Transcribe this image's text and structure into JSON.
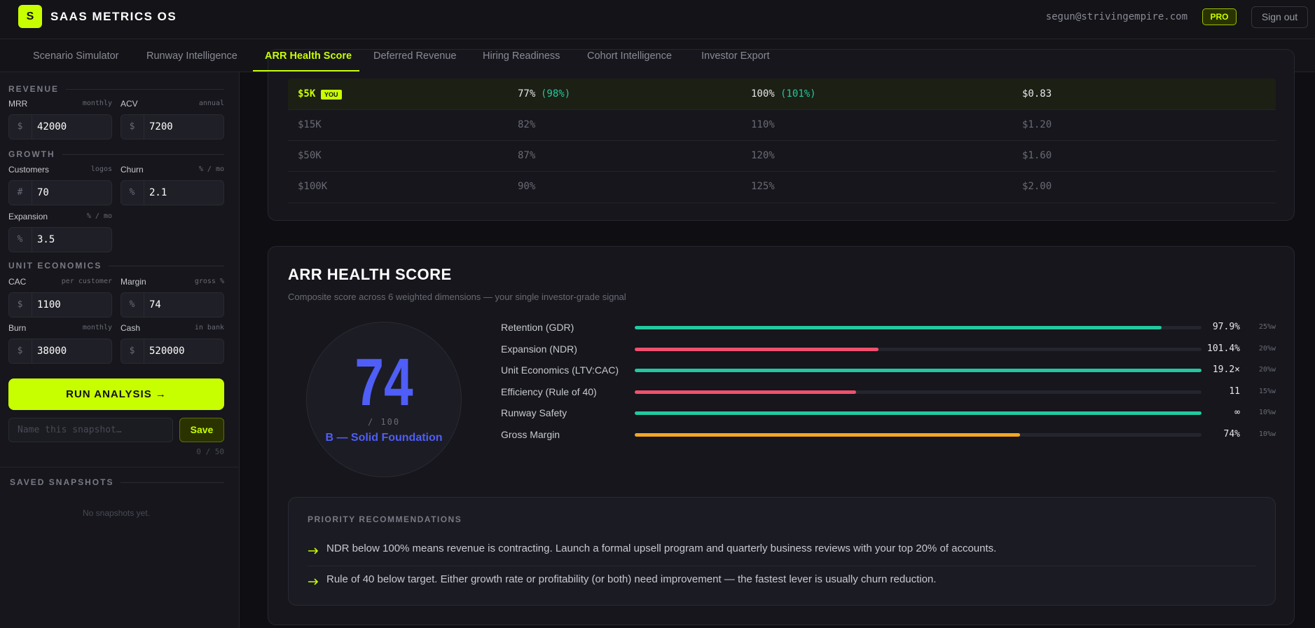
{
  "header": {
    "logo": "S",
    "brand": "SAAS METRICS OS",
    "email": "segun@strivingempire.com",
    "plan": "PRO",
    "sign_out": "Sign out"
  },
  "tabs": [
    "Scenario Simulator",
    "Runway Intelligence",
    "ARR Health Score",
    "Deferred Revenue",
    "Hiring Readiness",
    "Cohort Intelligence",
    "Investor Export"
  ],
  "sidebar": {
    "sections": [
      {
        "title": "REVENUE",
        "fields": [
          {
            "label": "MRR",
            "unit": "monthly",
            "prefix": "$",
            "value": "42000"
          },
          {
            "label": "ACV",
            "unit": "annual",
            "prefix": "$",
            "value": "7200"
          }
        ]
      },
      {
        "title": "GROWTH",
        "fields": [
          {
            "label": "Customers",
            "unit": "logos",
            "prefix": "#",
            "value": "70"
          },
          {
            "label": "Churn",
            "unit": "% / mo",
            "prefix": "%",
            "value": "2.1"
          },
          {
            "label": "Expansion",
            "unit": "% / mo",
            "prefix": "%",
            "value": "3.5"
          }
        ]
      },
      {
        "title": "UNIT ECONOMICS",
        "fields": [
          {
            "label": "CAC",
            "unit": "per customer",
            "prefix": "$",
            "value": "1100"
          },
          {
            "label": "Margin",
            "unit": "gross %",
            "prefix": "%",
            "value": "74"
          },
          {
            "label": "Burn",
            "unit": "monthly",
            "prefix": "$",
            "value": "38000"
          },
          {
            "label": "Cash",
            "unit": "in bank",
            "prefix": "$",
            "value": "520000"
          }
        ]
      }
    ],
    "run_button": "RUN ANALYSIS →",
    "snapshot_placeholder": "Name this snapshot…",
    "save": "Save",
    "char_count": "0 / 50",
    "saved_title": "SAVED SNAPSHOTS",
    "saved_empty": "No snapshots yet."
  },
  "table": {
    "rows": [
      {
        "tier": "$5K",
        "badge": "YOU",
        "gdr": "77%",
        "gdr_you": "(98%)",
        "ndr": "100%",
        "ndr_you": "(101%)",
        "ratio": "$0.83"
      },
      {
        "tier": "$15K",
        "gdr": "82%",
        "ndr": "110%",
        "ratio": "$1.20"
      },
      {
        "tier": "$50K",
        "gdr": "87%",
        "ndr": "120%",
        "ratio": "$1.60"
      },
      {
        "tier": "$100K",
        "gdr": "90%",
        "ndr": "125%",
        "ratio": "$2.00"
      }
    ]
  },
  "score_card": {
    "title": "ARR HEALTH SCORE",
    "subtitle": "Composite score across 6 weighted dimensions — your single investor-grade signal",
    "score": 74,
    "out_of": "/ 100",
    "grade": "B — Solid Foundation",
    "dimensions": [
      {
        "name": "Retention (GDR)",
        "value": "97.9%",
        "weight": "25%w",
        "score": 93,
        "color": "#22c9a0"
      },
      {
        "name": "Expansion (NDR)",
        "value": "101.4%",
        "weight": "20%w",
        "score": 43,
        "color": "#f0506e"
      },
      {
        "name": "Unit Economics (LTV:CAC)",
        "value": "19.2×",
        "weight": "20%w",
        "score": 100,
        "color": "#22c9a0"
      },
      {
        "name": "Efficiency (Rule of 40)",
        "value": "11",
        "weight": "15%w",
        "score": 39,
        "color": "#f0506e"
      },
      {
        "name": "Runway Safety",
        "value": "∞",
        "weight": "10%w",
        "score": 100,
        "color": "#22c9a0"
      },
      {
        "name": "Gross Margin",
        "value": "74%",
        "weight": "10%w",
        "score": 68,
        "color": "#f5a623"
      }
    ]
  },
  "recommendations": {
    "title": "PRIORITY RECOMMENDATIONS",
    "items": [
      "NDR below 100% means revenue is contracting. Launch a formal upsell program and quarterly business reviews with your top 20% of accounts.",
      "Rule of 40 below target. Either growth rate or profitability (or both) need improvement — the fastest lever is usually churn reduction."
    ]
  }
}
